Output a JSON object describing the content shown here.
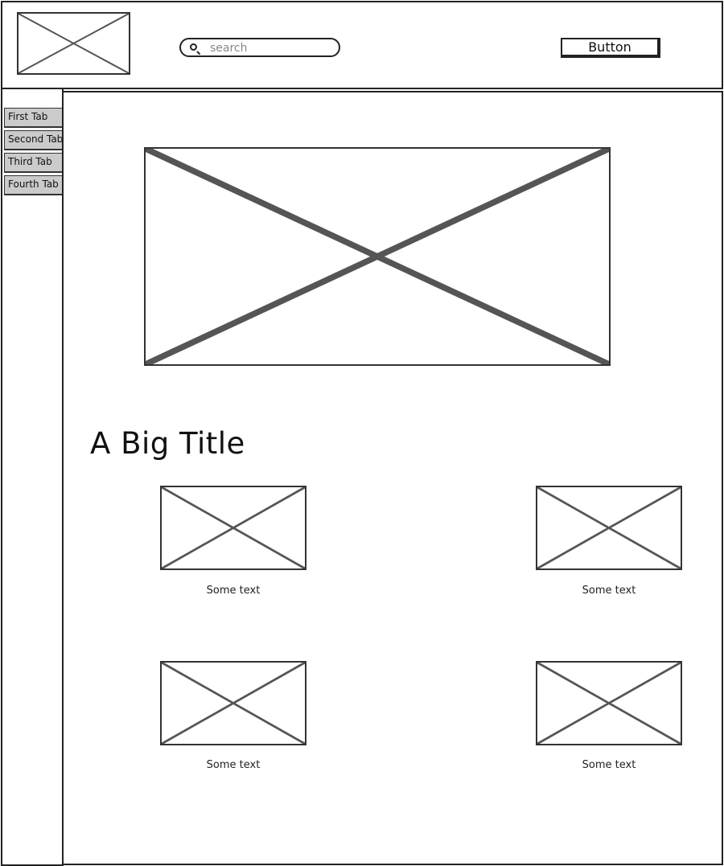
{
  "header": {
    "logo_icon": "image-placeholder-icon",
    "search": {
      "placeholder": "search",
      "value": "",
      "icon": "search-icon"
    },
    "button_label": "Button"
  },
  "sidebar": {
    "tabs": [
      {
        "label": "First Tab"
      },
      {
        "label": "Second Tab"
      },
      {
        "label": "Third Tab"
      },
      {
        "label": "Fourth Tab"
      }
    ]
  },
  "main": {
    "hero_icon": "image-placeholder-icon",
    "title": "A Big Title",
    "cards": [
      {
        "caption": "Some text",
        "icon": "image-placeholder-icon"
      },
      {
        "caption": "Some text",
        "icon": "image-placeholder-icon"
      },
      {
        "caption": "Some text",
        "icon": "image-placeholder-icon"
      },
      {
        "caption": "Some text",
        "icon": "image-placeholder-icon"
      }
    ]
  }
}
